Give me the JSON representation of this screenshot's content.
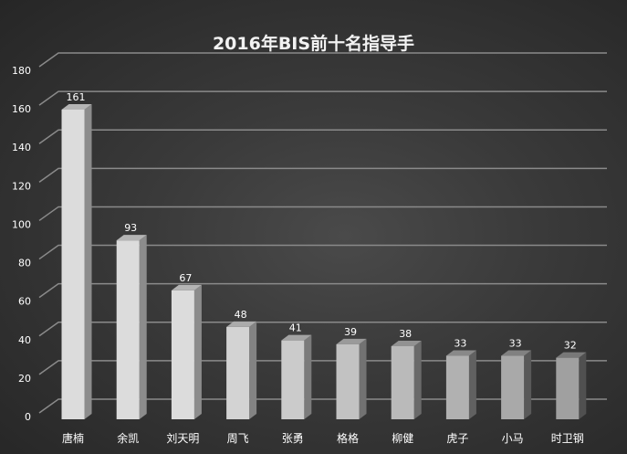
{
  "chart_data": {
    "type": "bar",
    "title": "2016年BIS前十名指导手",
    "categories": [
      "唐楠",
      "余凯",
      "刘天明",
      "周飞",
      "张勇",
      "格格",
      "柳健",
      "虎子",
      "小马",
      "时卫钢"
    ],
    "values": [
      161,
      93,
      67,
      48,
      41,
      39,
      38,
      33,
      33,
      32
    ],
    "ylim": [
      0,
      180
    ],
    "yticks": [
      0,
      20,
      40,
      60,
      80,
      100,
      120,
      140,
      160,
      180
    ],
    "xlabel": "",
    "ylabel": "",
    "grid": true,
    "style": "3d-column",
    "colors": {
      "bar_light": "#dcdcdc",
      "bar_dark": "#9a9a9a",
      "grid": "#8a8a8a",
      "text": "#ffffff"
    }
  }
}
